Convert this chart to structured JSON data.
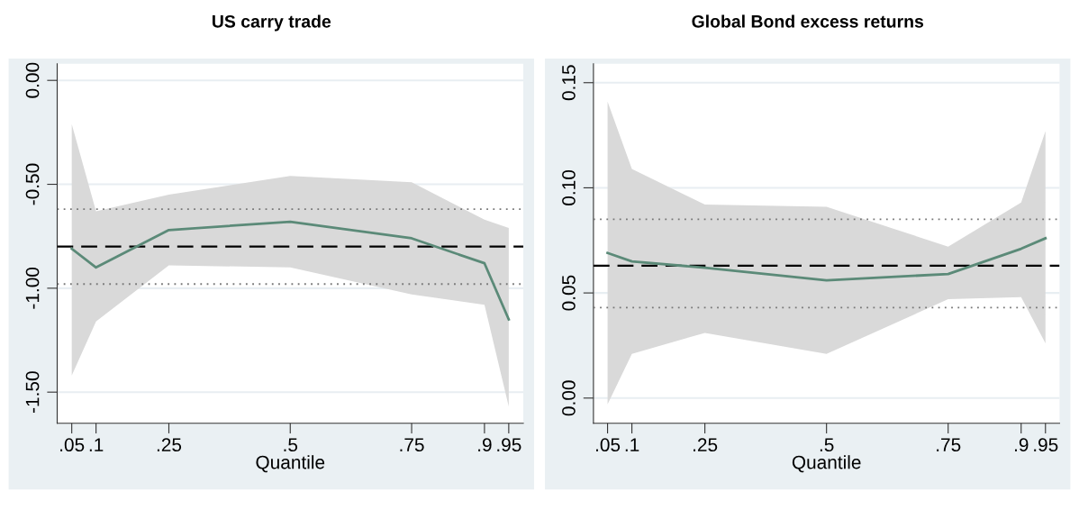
{
  "chart_data": [
    {
      "type": "line",
      "title": "US carry trade",
      "xlabel": "Quantile",
      "x": [
        0.05,
        0.1,
        0.25,
        0.5,
        0.75,
        0.9,
        0.95
      ],
      "series": [
        {
          "color": "#5b8a78",
          "values": [
            -0.81,
            -0.9,
            -0.72,
            -0.68,
            -0.76,
            -0.88,
            -1.15
          ],
          "lower": [
            -1.42,
            -1.16,
            -0.89,
            -0.9,
            -1.03,
            -1.08,
            -1.57
          ],
          "upper": [
            -0.21,
            -0.63,
            -0.55,
            -0.46,
            -0.49,
            -0.67,
            -0.71
          ]
        }
      ],
      "xlim": [
        0.02,
        0.98
      ],
      "ylim": [
        -1.65,
        0.08
      ],
      "xticks": [
        {
          "value": 0.05,
          "label": ".05"
        },
        {
          "value": 0.1,
          "label": ".1"
        },
        {
          "value": 0.25,
          "label": ".25"
        },
        {
          "value": 0.5,
          "label": ".5"
        },
        {
          "value": 0.75,
          "label": ".75"
        },
        {
          "value": 0.9,
          "label": ".9"
        },
        {
          "value": 0.95,
          "label": ".95"
        }
      ],
      "yticks": [
        {
          "value": 0,
          "label": "0.00"
        },
        {
          "value": -0.5,
          "label": "-0.50"
        },
        {
          "value": -1.0,
          "label": "-1.00"
        },
        {
          "value": -1.5,
          "label": "-1.50"
        }
      ],
      "ref_lines": [
        {
          "axis": "y",
          "value": -0.8,
          "color": "#000000",
          "line_style": "dashed"
        },
        {
          "axis": "y",
          "value": -0.62,
          "color": "#777777",
          "line_style": "dotted"
        },
        {
          "axis": "y",
          "value": -0.98,
          "color": "#777777",
          "line_style": "dotted"
        }
      ],
      "grid": "y",
      "legend": false,
      "line_style": "solid"
    },
    {
      "type": "line",
      "title": "Global Bond excess returns",
      "xlabel": "Quantile",
      "x": [
        0.05,
        0.1,
        0.25,
        0.5,
        0.75,
        0.9,
        0.95
      ],
      "series": [
        {
          "color": "#5b8a78",
          "values": [
            0.069,
            0.065,
            0.062,
            0.056,
            0.059,
            0.071,
            0.076
          ],
          "lower": [
            -0.003,
            0.021,
            0.031,
            0.021,
            0.047,
            0.048,
            0.026
          ],
          "upper": [
            0.141,
            0.109,
            0.092,
            0.091,
            0.072,
            0.093,
            0.127
          ]
        }
      ],
      "xlim": [
        0.021,
        0.979
      ],
      "ylim": [
        -0.012,
        0.159
      ],
      "xticks": [
        {
          "value": 0.05,
          "label": ".05"
        },
        {
          "value": 0.1,
          "label": ".1"
        },
        {
          "value": 0.25,
          "label": ".25"
        },
        {
          "value": 0.5,
          "label": ".5"
        },
        {
          "value": 0.75,
          "label": ".75"
        },
        {
          "value": 0.9,
          "label": ".9"
        },
        {
          "value": 0.95,
          "label": ".95"
        }
      ],
      "yticks": [
        {
          "value": 0,
          "label": "0.00"
        },
        {
          "value": 0.05,
          "label": "0.05"
        },
        {
          "value": 0.1,
          "label": "0.10"
        },
        {
          "value": 0.15,
          "label": "0.15"
        }
      ],
      "ref_lines": [
        {
          "axis": "y",
          "value": 0.063,
          "color": "#000000",
          "line_style": "dashed"
        },
        {
          "axis": "y",
          "value": 0.085,
          "color": "#777777",
          "line_style": "dotted"
        },
        {
          "axis": "y",
          "value": 0.043,
          "color": "#777777",
          "line_style": "dotted"
        }
      ],
      "grid": "y",
      "legend": false,
      "line_style": "solid"
    }
  ]
}
